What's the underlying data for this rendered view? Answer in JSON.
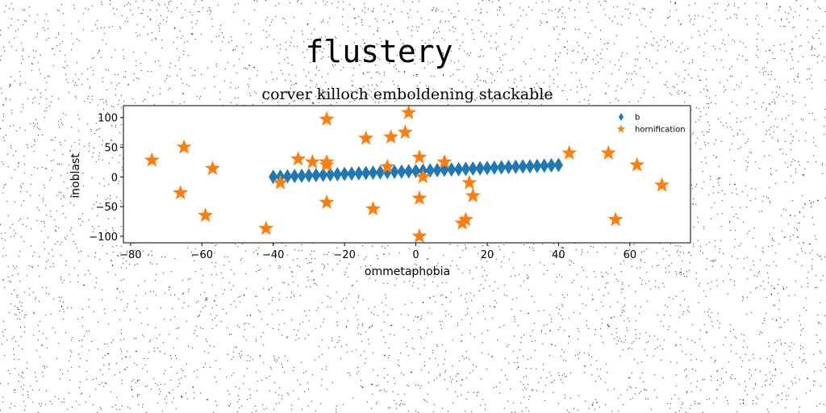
{
  "chart_data": {
    "type": "scatter",
    "suptitle": "flustery",
    "title": "corver killoch emboldening stackable",
    "xlabel": "ommetaphobia",
    "ylabel": "inoblast",
    "xlim": [
      -82,
      77
    ],
    "ylim": [
      -111,
      120
    ],
    "xticks": [
      -80,
      -60,
      -40,
      -20,
      0,
      20,
      40,
      60
    ],
    "yticks": [
      -100,
      -50,
      0,
      50,
      100
    ],
    "grid": false,
    "legend_position": "top-right",
    "background_noise": true,
    "series": [
      {
        "name": "b",
        "marker": "thin-diamond",
        "color": "#1f77b4",
        "points": [
          [
            -40,
            0.0
          ],
          [
            -38,
            0.5
          ],
          [
            -36,
            1.0
          ],
          [
            -34,
            1.5
          ],
          [
            -32,
            2.0
          ],
          [
            -30,
            2.5
          ],
          [
            -28,
            3.0
          ],
          [
            -26,
            3.5
          ],
          [
            -24,
            4.0
          ],
          [
            -22,
            4.5
          ],
          [
            -20,
            5.0
          ],
          [
            -18,
            5.5
          ],
          [
            -16,
            6.0
          ],
          [
            -14,
            6.5
          ],
          [
            -12,
            7.0
          ],
          [
            -10,
            7.5
          ],
          [
            -8,
            8.0
          ],
          [
            -6,
            8.5
          ],
          [
            -4,
            9.0
          ],
          [
            -2,
            9.5
          ],
          [
            0,
            10.0
          ],
          [
            2,
            10.5
          ],
          [
            4,
            11.0
          ],
          [
            6,
            11.5
          ],
          [
            8,
            12.0
          ],
          [
            10,
            12.5
          ],
          [
            12,
            13.0
          ],
          [
            14,
            13.5
          ],
          [
            16,
            14.0
          ],
          [
            18,
            14.5
          ],
          [
            20,
            15.0
          ],
          [
            22,
            15.5
          ],
          [
            24,
            16.0
          ],
          [
            26,
            16.5
          ],
          [
            28,
            17.0
          ],
          [
            30,
            17.5
          ],
          [
            32,
            18.0
          ],
          [
            34,
            18.5
          ],
          [
            36,
            19.0
          ],
          [
            38,
            19.5
          ],
          [
            40,
            20.0
          ]
        ]
      },
      {
        "name": "hornification",
        "marker": "star",
        "color": "#ff7f0e",
        "points": [
          [
            -74,
            28
          ],
          [
            -65,
            50
          ],
          [
            -66,
            -27
          ],
          [
            -57,
            14
          ],
          [
            -59,
            -65
          ],
          [
            -42,
            -87
          ],
          [
            -38,
            -10
          ],
          [
            -33,
            30
          ],
          [
            -29,
            25
          ],
          [
            -25,
            20
          ],
          [
            -25,
            25
          ],
          [
            -25,
            97
          ],
          [
            -25,
            -43
          ],
          [
            -14,
            65
          ],
          [
            -12,
            -54
          ],
          [
            -8,
            17
          ],
          [
            -7,
            67
          ],
          [
            -3,
            75
          ],
          [
            -2,
            108
          ],
          [
            1,
            -36
          ],
          [
            1,
            33
          ],
          [
            1,
            -100
          ],
          [
            2,
            0
          ],
          [
            8,
            25
          ],
          [
            13,
            -78
          ],
          [
            14,
            -72
          ],
          [
            15,
            -10
          ],
          [
            16,
            -32
          ],
          [
            43,
            40
          ],
          [
            54,
            40
          ],
          [
            56,
            -72
          ],
          [
            62,
            20
          ],
          [
            69,
            -14
          ]
        ]
      }
    ]
  }
}
